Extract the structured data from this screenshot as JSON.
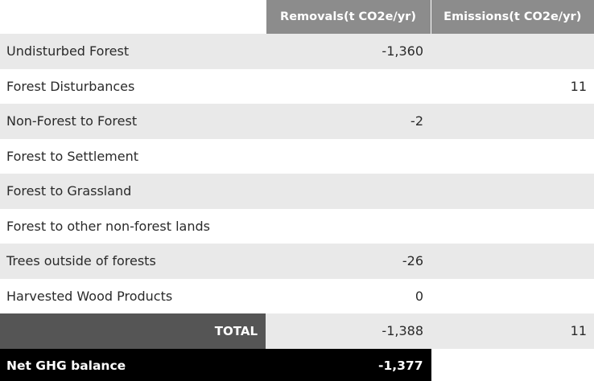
{
  "table": {
    "headers": {
      "removals": "Removals(t CO2e/yr)",
      "emissions": "Emissions(t CO2e/yr)"
    },
    "rows": [
      {
        "label": "Undisturbed Forest",
        "removals": "-1,360",
        "emissions": ""
      },
      {
        "label": "Forest Disturbances",
        "removals": "",
        "emissions": "11"
      },
      {
        "label": "Non-Forest to Forest",
        "removals": "-2",
        "emissions": ""
      },
      {
        "label": "Forest to Settlement",
        "removals": "",
        "emissions": ""
      },
      {
        "label": "Forest to Grassland",
        "removals": "",
        "emissions": ""
      },
      {
        "label": "Forest to other non-forest lands",
        "removals": "",
        "emissions": ""
      },
      {
        "label": "Trees outside of forests",
        "removals": "-26",
        "emissions": ""
      },
      {
        "label": "Harvested Wood Products",
        "removals": "0",
        "emissions": ""
      }
    ],
    "total": {
      "label": "TOTAL",
      "removals": "-1,388",
      "emissions": "11"
    },
    "net": {
      "label": "Net GHG balance",
      "value": "-1,377"
    }
  },
  "colors": {
    "header_bg": "#8c8c8c",
    "stripe_bg": "#e9e9e9",
    "total_label_bg": "#555555",
    "net_bg": "#000000"
  }
}
